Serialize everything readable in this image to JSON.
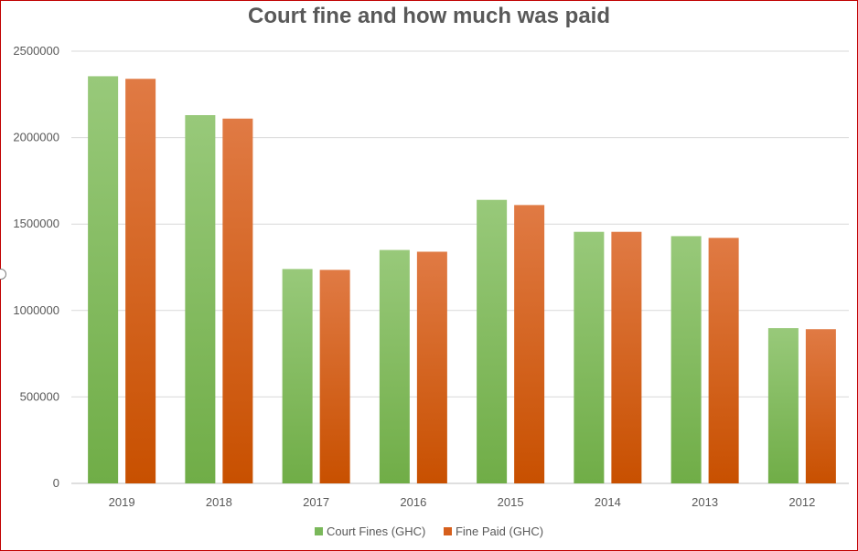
{
  "chart_data": {
    "type": "bar",
    "title": "Court fine and how much was paid",
    "categories": [
      "2019",
      "2018",
      "2017",
      "2016",
      "2015",
      "2014",
      "2013",
      "2012"
    ],
    "series": [
      {
        "name": "Court Fines (GHC)",
        "values": [
          2355000,
          2130000,
          1240000,
          1350000,
          1640000,
          1455000,
          1430000,
          898000
        ]
      },
      {
        "name": "Fine Paid (GHC)",
        "values": [
          2340000,
          2110000,
          1235000,
          1340000,
          1610000,
          1455000,
          1420000,
          892000
        ]
      }
    ],
    "xlabel": "",
    "ylabel": "",
    "ylim": [
      0,
      2500000
    ],
    "yticks": [
      "0",
      "500000",
      "1000000",
      "1500000",
      "2000000",
      "2500000"
    ],
    "grid": true,
    "legend_position": "bottom",
    "colors": {
      "Court Fines (GHC)": "#7ab85a",
      "Fine Paid (GHC)": "#d65f1c"
    }
  }
}
